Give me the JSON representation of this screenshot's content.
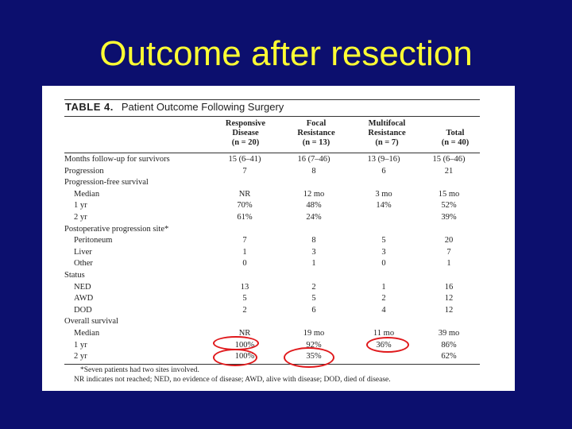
{
  "slide": {
    "title": "Outcome after resection"
  },
  "table": {
    "caption_number": "TABLE 4.",
    "caption_text": "Patient Outcome Following Surgery",
    "headers": [
      {
        "lines": [
          "Responsive",
          "Disease",
          "(n = 20)"
        ]
      },
      {
        "lines": [
          "Focal",
          "Resistance",
          "(n = 13)"
        ]
      },
      {
        "lines": [
          "Multifocal",
          "Resistance",
          "(n = 7)"
        ]
      },
      {
        "lines": [
          "Total",
          "(n = 40)"
        ]
      }
    ],
    "rows": [
      {
        "label": "Months follow-up for survivors",
        "indent": false,
        "cells": [
          "15 (6–41)",
          "16 (7–46)",
          "13 (9–16)",
          "15 (6–46)"
        ]
      },
      {
        "label": "Progression",
        "indent": false,
        "cells": [
          "7",
          "8",
          "6",
          "21"
        ]
      },
      {
        "label": "Progression-free survival",
        "indent": false,
        "cells": [
          "",
          "",
          "",
          ""
        ]
      },
      {
        "label": "Median",
        "indent": true,
        "cells": [
          "NR",
          "12 mo",
          "3 mo",
          "15 mo"
        ]
      },
      {
        "label": "1 yr",
        "indent": true,
        "cells": [
          "70%",
          "48%",
          "14%",
          "52%"
        ]
      },
      {
        "label": "2 yr",
        "indent": true,
        "cells": [
          "61%",
          "24%",
          "",
          "39%"
        ]
      },
      {
        "label": "Postoperative progression site*",
        "indent": false,
        "cells": [
          "",
          "",
          "",
          ""
        ]
      },
      {
        "label": "Peritoneum",
        "indent": true,
        "cells": [
          "7",
          "8",
          "5",
          "20"
        ]
      },
      {
        "label": "Liver",
        "indent": true,
        "cells": [
          "1",
          "3",
          "3",
          "7"
        ]
      },
      {
        "label": "Other",
        "indent": true,
        "cells": [
          "0",
          "1",
          "0",
          "1"
        ]
      },
      {
        "label": "Status",
        "indent": false,
        "cells": [
          "",
          "",
          "",
          ""
        ]
      },
      {
        "label": "NED",
        "indent": true,
        "cells": [
          "13",
          "2",
          "1",
          "16"
        ]
      },
      {
        "label": "AWD",
        "indent": true,
        "cells": [
          "5",
          "5",
          "2",
          "12"
        ]
      },
      {
        "label": "DOD",
        "indent": true,
        "cells": [
          "2",
          "6",
          "4",
          "12"
        ]
      },
      {
        "label": "Overall survival",
        "indent": false,
        "cells": [
          "",
          "",
          "",
          ""
        ]
      },
      {
        "label": "Median",
        "indent": true,
        "cells": [
          "NR",
          "19 mo",
          "11 mo",
          "39 mo"
        ]
      },
      {
        "label": "1 yr",
        "indent": true,
        "cells": [
          "100%",
          "92%",
          "36%",
          "86%"
        ]
      },
      {
        "label": "2 yr",
        "indent": true,
        "cells": [
          "100%",
          "35%",
          "",
          "62%"
        ]
      }
    ],
    "footnotes": [
      "*Seven patients had two sites involved.",
      "NR indicates not reached; NED, no evidence of disease; AWD, alive with disease; DOD, died of disease."
    ]
  },
  "annotations": {
    "highlight_color": "#e0191c"
  }
}
